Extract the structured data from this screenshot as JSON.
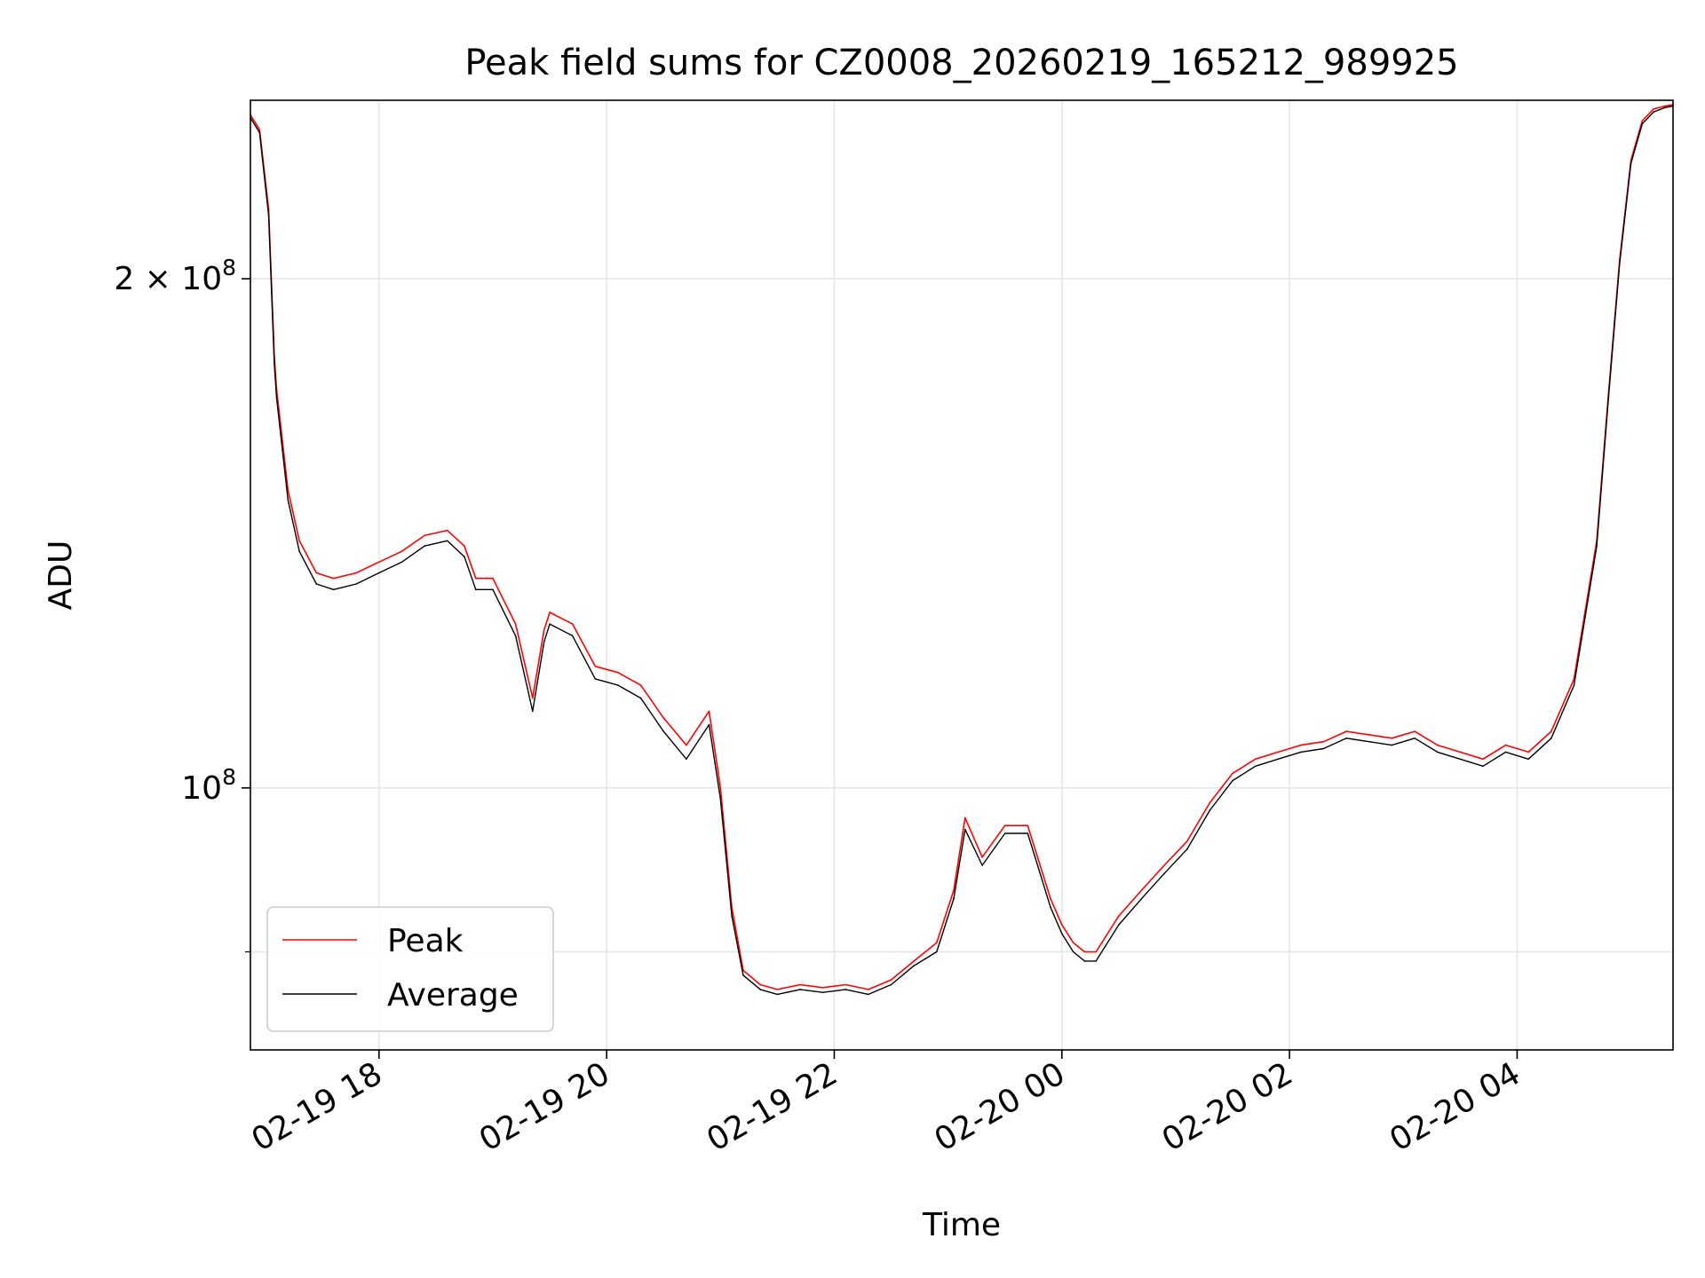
{
  "chart_data": {
    "type": "line",
    "title": "Peak field sums for CZ0008_20260219_165212_989925",
    "xlabel": "Time",
    "ylabel": "ADU",
    "yscale": "log",
    "grid": true,
    "legend_location": "lower-left",
    "xlim_hours": [
      16.87,
      29.37
    ],
    "ylim": [
      70000000,
      255000000
    ],
    "x_unit": "hours since 2026-02-19 00:00",
    "x_ticks": [
      {
        "value": 18,
        "label": "02-19 18"
      },
      {
        "value": 20,
        "label": "02-19 20"
      },
      {
        "value": 22,
        "label": "02-19 22"
      },
      {
        "value": 24,
        "label": "02-20 00"
      },
      {
        "value": 26,
        "label": "02-20 02"
      },
      {
        "value": 28,
        "label": "02-20 04"
      }
    ],
    "y_major_ticks": [
      {
        "value": 100000000,
        "base": "10",
        "exp": "8",
        "mult": ""
      },
      {
        "value": 200000000,
        "base": "10",
        "exp": "8",
        "mult": "2 × "
      }
    ],
    "y_minor_ticks": [
      80000000
    ],
    "series": [
      {
        "name": "Peak",
        "color": "#ff0000",
        "x": [
          16.87,
          16.95,
          17.03,
          17.08,
          17.1,
          17.2,
          17.3,
          17.45,
          17.6,
          17.8,
          18.0,
          18.2,
          18.4,
          18.6,
          18.75,
          18.85,
          19.0,
          19.2,
          19.35,
          19.45,
          19.5,
          19.7,
          19.9,
          20.1,
          20.3,
          20.5,
          20.7,
          20.9,
          21.0,
          21.1,
          21.2,
          21.35,
          21.5,
          21.7,
          21.9,
          22.1,
          22.3,
          22.5,
          22.7,
          22.9,
          23.05,
          23.15,
          23.3,
          23.5,
          23.7,
          23.9,
          24.0,
          24.1,
          24.2,
          24.3,
          24.5,
          24.7,
          24.9,
          25.1,
          25.3,
          25.5,
          25.7,
          25.9,
          26.1,
          26.3,
          26.5,
          26.7,
          26.9,
          27.1,
          27.3,
          27.5,
          27.7,
          27.9,
          28.1,
          28.3,
          28.5,
          28.7,
          28.8,
          28.9,
          29.0,
          29.1,
          29.2,
          29.3,
          29.37
        ],
        "y": [
          250000000,
          245000000,
          220000000,
          180000000,
          172000000,
          150000000,
          140000000,
          134000000,
          133000000,
          134000000,
          136000000,
          138000000,
          141000000,
          142000000,
          139000000,
          133000000,
          133000000,
          125000000,
          113000000,
          124000000,
          127000000,
          125000000,
          118000000,
          117000000,
          115000000,
          110000000,
          106000000,
          111000000,
          100000000,
          85000000,
          78000000,
          76500000,
          76000000,
          76500000,
          76200000,
          76500000,
          76000000,
          77000000,
          79000000,
          81000000,
          87000000,
          96000000,
          91000000,
          95000000,
          95000000,
          86000000,
          83000000,
          81000000,
          80000000,
          80000000,
          84000000,
          87000000,
          90000000,
          93000000,
          98000000,
          102000000,
          104000000,
          105000000,
          106000000,
          106500000,
          108000000,
          107500000,
          107000000,
          108000000,
          106000000,
          105000000,
          104000000,
          106000000,
          105000000,
          108000000,
          116000000,
          140000000,
          170000000,
          205000000,
          235000000,
          248000000,
          252000000,
          253000000,
          253500000
        ]
      },
      {
        "name": "Average",
        "color": "#000000",
        "x": [
          16.87,
          16.95,
          17.03,
          17.08,
          17.1,
          17.2,
          17.3,
          17.45,
          17.6,
          17.8,
          18.0,
          18.2,
          18.4,
          18.6,
          18.75,
          18.85,
          19.0,
          19.2,
          19.35,
          19.45,
          19.5,
          19.7,
          19.9,
          20.1,
          20.3,
          20.5,
          20.7,
          20.9,
          21.0,
          21.1,
          21.2,
          21.35,
          21.5,
          21.7,
          21.9,
          22.1,
          22.3,
          22.5,
          22.7,
          22.9,
          23.05,
          23.15,
          23.3,
          23.5,
          23.7,
          23.9,
          24.0,
          24.1,
          24.2,
          24.3,
          24.5,
          24.7,
          24.9,
          25.1,
          25.3,
          25.5,
          25.7,
          25.9,
          26.1,
          26.3,
          26.5,
          26.7,
          26.9,
          27.1,
          27.3,
          27.5,
          27.7,
          27.9,
          28.1,
          28.3,
          28.5,
          28.7,
          28.8,
          28.9,
          29.0,
          29.1,
          29.2,
          29.3,
          29.37
        ],
        "y": [
          249000000,
          244000000,
          218000000,
          178000000,
          170000000,
          148000000,
          138000000,
          132000000,
          131000000,
          132000000,
          134000000,
          136000000,
          139000000,
          140000000,
          137000000,
          131000000,
          131000000,
          123000000,
          111000000,
          122000000,
          125000000,
          123000000,
          116000000,
          115000000,
          113000000,
          108000000,
          104000000,
          109000000,
          98500000,
          84000000,
          77500000,
          76000000,
          75500000,
          76000000,
          75700000,
          76000000,
          75500000,
          76500000,
          78500000,
          80000000,
          86000000,
          94500000,
          90000000,
          94000000,
          94000000,
          85000000,
          82000000,
          80000000,
          79000000,
          79000000,
          83000000,
          86000000,
          89000000,
          92000000,
          97000000,
          101000000,
          103000000,
          104000000,
          105000000,
          105500000,
          107000000,
          106500000,
          106000000,
          107000000,
          105000000,
          104000000,
          103000000,
          105000000,
          104000000,
          107000000,
          115000000,
          139000000,
          169000000,
          204000000,
          234000000,
          247000000,
          251000000,
          252500000,
          253000000
        ]
      }
    ]
  }
}
